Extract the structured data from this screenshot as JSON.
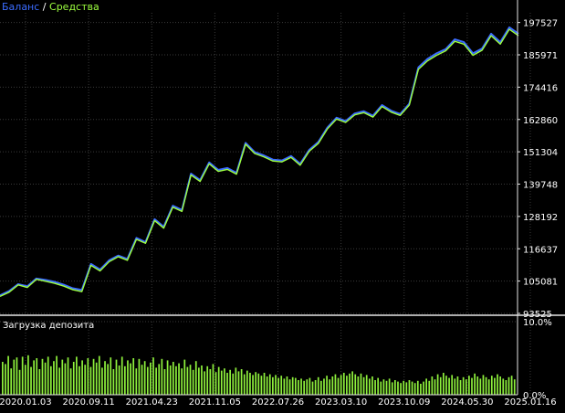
{
  "legend": {
    "balance": "Баланс",
    "separator": " / ",
    "equity": "Средства"
  },
  "colors": {
    "background": "#000000",
    "balance": "#3b6cff",
    "equity": "#9dff3f",
    "grid": "#3a3a3a",
    "axis": "#e6e6e6",
    "text": "#ffffff",
    "bars": "#8ef03c"
  },
  "chart_data": [
    {
      "type": "line",
      "title": "",
      "series": [
        {
          "name": "Баланс",
          "values": [
            100000,
            101500,
            104000,
            103200,
            106000,
            105500,
            104800,
            103800,
            102500,
            101900,
            111200,
            109200,
            112500,
            114200,
            113000,
            120500,
            119000,
            127200,
            124500,
            132000,
            130500,
            143500,
            141200,
            147500,
            144800,
            145500,
            143800,
            154500,
            151200,
            150000,
            148500,
            148200,
            149800,
            147000,
            152000,
            154800,
            160000,
            163500,
            162300,
            165000,
            165800,
            164200,
            168000,
            166000,
            164800,
            168500,
            181500,
            184500,
            186500,
            188000,
            191500,
            190500,
            186500,
            188200,
            193500,
            190500,
            195800,
            193500
          ]
        },
        {
          "name": "Средства",
          "values": [
            99600,
            101100,
            103700,
            102800,
            105700,
            105000,
            104300,
            103300,
            102000,
            101300,
            110700,
            108700,
            112000,
            113800,
            112500,
            120000,
            118600,
            126700,
            124000,
            131500,
            130000,
            143000,
            140700,
            147000,
            144300,
            145000,
            143300,
            154000,
            150700,
            149500,
            148000,
            147700,
            149300,
            146500,
            151500,
            154300,
            159500,
            163000,
            161800,
            164500,
            165300,
            163700,
            167500,
            165500,
            164300,
            168000,
            180800,
            183800,
            185800,
            187400,
            190800,
            189800,
            185800,
            187600,
            192800,
            189800,
            195100,
            192800
          ]
        }
      ],
      "ylim": [
        93525,
        201000
      ],
      "y_ticks": [
        "197527",
        "185971",
        "174416",
        "162860",
        "151304",
        "139748",
        "128192",
        "116637",
        "105081",
        "93525"
      ],
      "y_tick_values": [
        197527,
        185971,
        174416,
        162860,
        151304,
        139748,
        128192,
        116637,
        105081,
        93525
      ],
      "grid": true
    },
    {
      "type": "bar",
      "title": "Загрузка депозита",
      "ylim": [
        0,
        10
      ],
      "y_ticks": [
        "10.0%",
        "0.0%"
      ],
      "y_tick_values": [
        10,
        0
      ],
      "values": [
        4.5,
        4.2,
        5.3,
        3.6,
        4.8,
        5.1,
        3.4,
        5.2,
        4.1,
        5.4,
        3.8,
        4.7,
        5.0,
        3.5,
        4.9,
        4.4,
        5.2,
        3.9,
        4.6,
        5.3,
        3.7,
        4.8,
        4.3,
        5.1,
        3.6,
        4.5,
        5.2,
        3.9,
        4.7,
        4.1,
        5.0,
        3.8,
        4.9,
        4.4,
        5.3,
        3.7,
        4.6,
        4.2,
        5.1,
        3.5,
        4.8,
        4.0,
        5.2,
        3.9,
        4.7,
        4.3,
        5.0,
        3.6,
        4.9,
        4.1,
        4.6,
        3.8,
        4.4,
        5.1,
        3.7,
        4.2,
        4.9,
        3.5,
        4.7,
        4.0,
        4.5,
        3.9,
        4.3,
        3.6,
        4.8,
        3.8,
        4.1,
        3.4,
        4.6,
        3.7,
        4.0,
        3.2,
        3.9,
        3.5,
        4.2,
        3.1,
        3.8,
        3.3,
        3.6,
        3.0,
        3.4,
        2.9,
        3.7,
        3.2,
        3.5,
        2.8,
        3.3,
        3.0,
        2.7,
        3.1,
        2.9,
        2.6,
        3.0,
        2.5,
        2.8,
        2.4,
        2.7,
        2.3,
        2.6,
        2.2,
        2.5,
        2.1,
        2.4,
        2.3,
        2.0,
        2.2,
        1.9,
        2.1,
        2.3,
        1.8,
        2.0,
        2.4,
        1.9,
        2.2,
        2.6,
        2.1,
        2.5,
        2.8,
        2.3,
        2.7,
        3.0,
        2.6,
        2.9,
        3.2,
        2.8,
        2.5,
        2.9,
        2.4,
        2.7,
        2.2,
        2.5,
        2.0,
        2.3,
        1.8,
        2.1,
        1.9,
        2.2,
        1.7,
        2.0,
        1.8,
        1.6,
        1.9,
        1.7,
        2.0,
        1.8,
        1.6,
        1.9,
        1.5,
        1.8,
        2.2,
        1.9,
        2.5,
        2.1,
        2.8,
        2.4,
        3.0,
        2.6,
        2.3,
        2.7,
        2.2,
        2.5,
        2.0,
        2.4,
        2.1,
        2.6,
        2.3,
        2.9,
        2.5,
        2.2,
        2.7,
        2.4,
        2.1,
        2.6,
        2.3,
        2.8,
        2.5,
        2.2,
        2.0,
        2.4,
        2.6,
        2.1
      ]
    }
  ],
  "x_axis": {
    "labels": [
      "2020.01.03",
      "2020.09.11",
      "2021.04.23",
      "2021.11.05",
      "2022.07.26",
      "2023.03.10",
      "2023.10.09",
      "2024.05.30",
      "2025.01.16"
    ]
  }
}
